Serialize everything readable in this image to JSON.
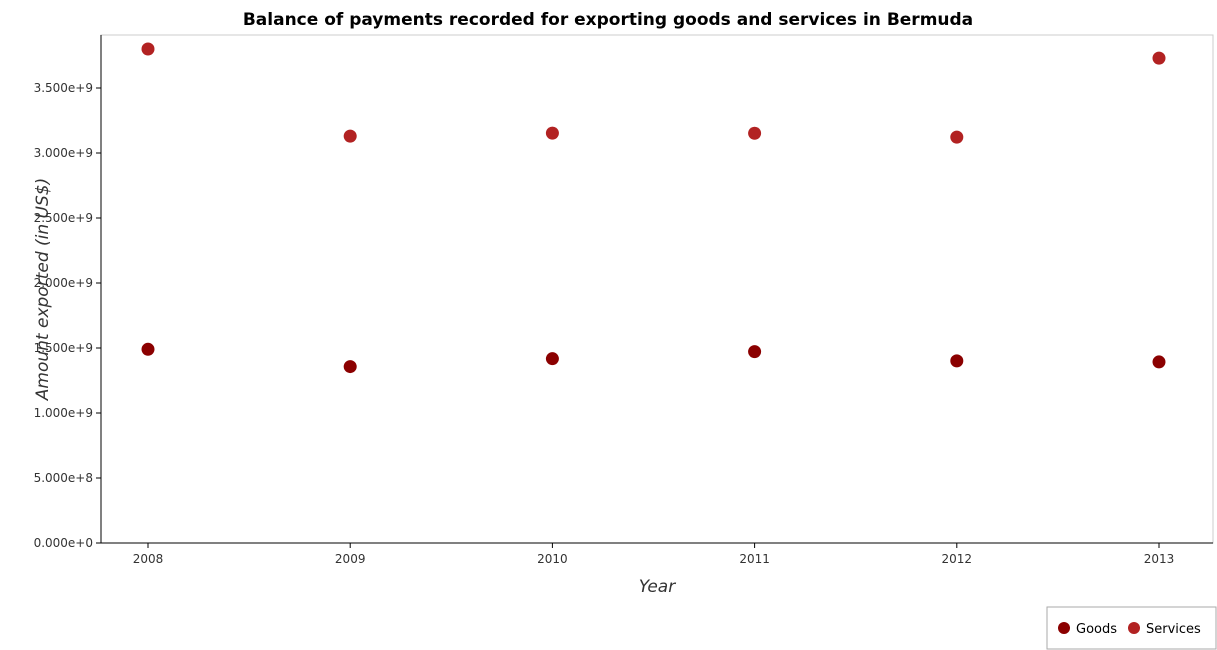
{
  "chart_data": {
    "type": "scatter",
    "title": "Balance of payments recorded for exporting goods and services in Bermuda",
    "xlabel": "Year",
    "ylabel": "Amount exported (in US$)",
    "categories": [
      "2008",
      "2009",
      "2010",
      "2011",
      "2012",
      "2013"
    ],
    "y_ticks": [
      "0.000e+0",
      "5.000e+8",
      "1.000e+9",
      "1.500e+9",
      "2.000e+9",
      "2.500e+9",
      "3.000e+9",
      "3.500e+9"
    ],
    "ylim": [
      0,
      4000000000
    ],
    "grid": false,
    "legend_position": "bottom-right",
    "series": [
      {
        "name": "Goods",
        "color": "#8b0000",
        "values": [
          1490000000,
          1357000000,
          1418000000,
          1472000000,
          1401000000,
          1393000000
        ]
      },
      {
        "name": "Services",
        "color": "#b22222",
        "values": [
          3800000000,
          3130000000,
          3153000000,
          3152000000,
          3122000000,
          3730000000
        ]
      }
    ]
  }
}
